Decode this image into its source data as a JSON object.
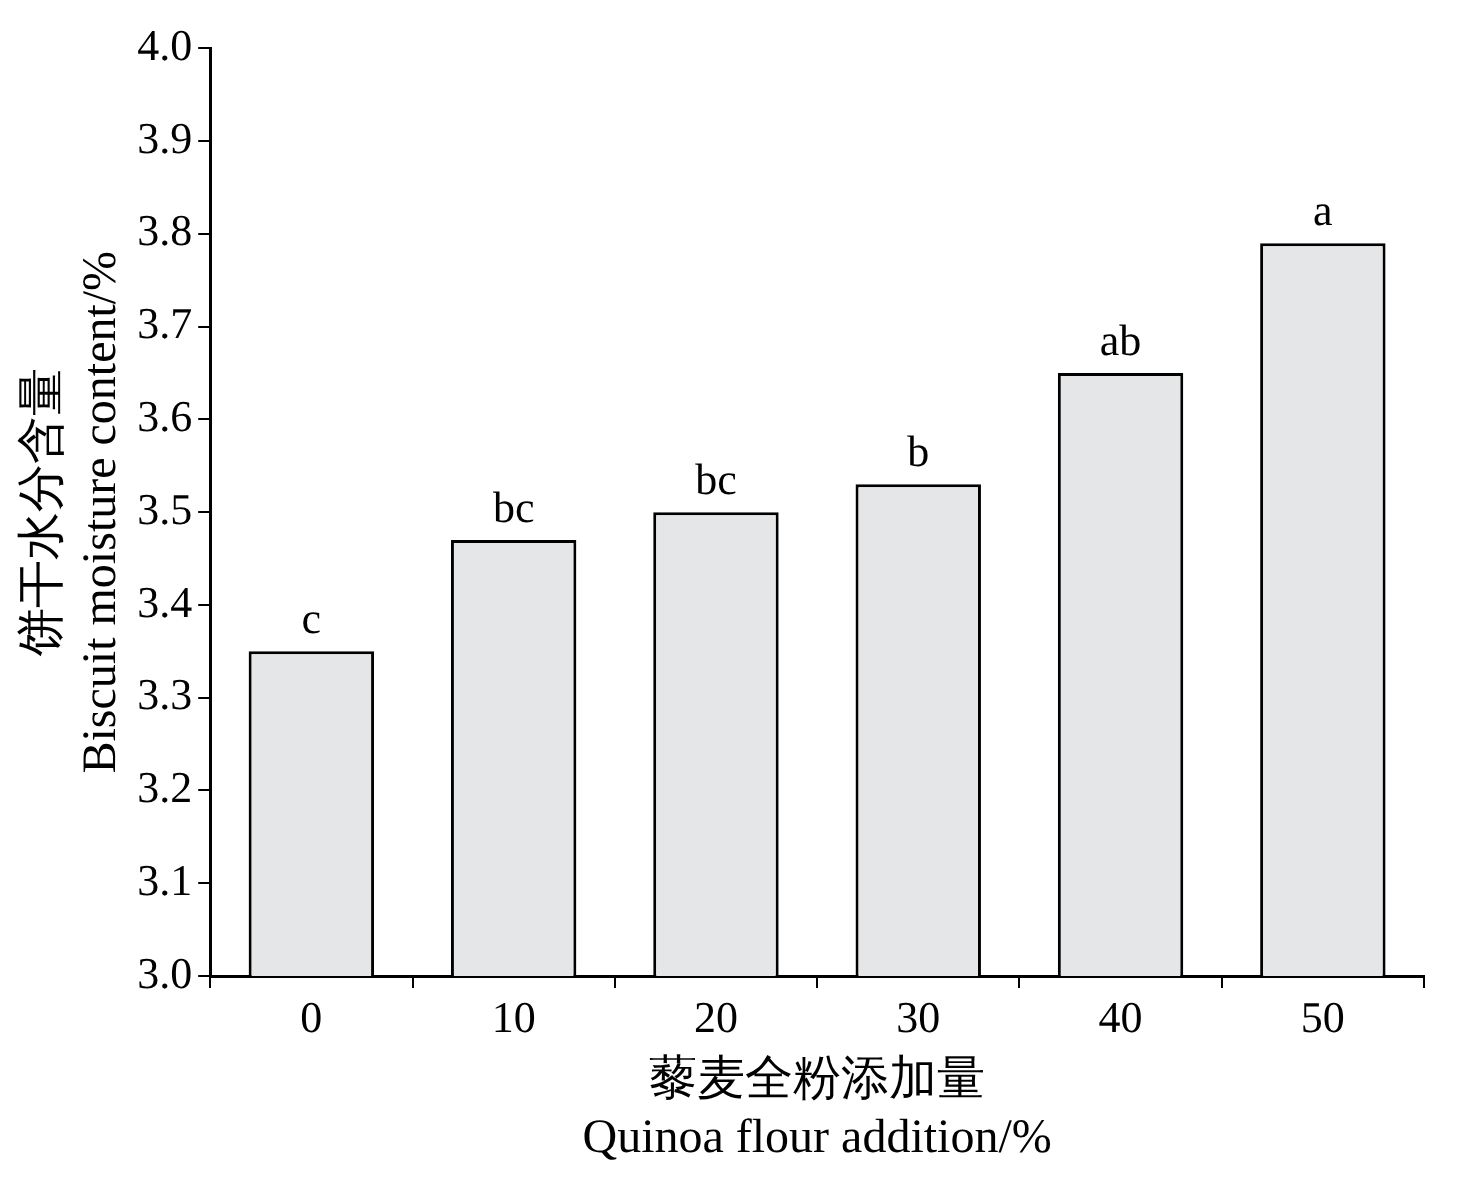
{
  "chart_data": {
    "type": "bar",
    "xlabel": "藜麦全粉添加量\nQuinoa flour addition/%",
    "ylabel": "饼干水分含量\nBiscuit moisture content/%",
    "categories": [
      "0",
      "10",
      "20",
      "30",
      "40",
      "50"
    ],
    "values": [
      3.35,
      3.47,
      3.5,
      3.53,
      3.65,
      3.79
    ],
    "color": "#e5e6e8",
    "ylim": [
      3.0,
      4.0
    ],
    "yticks": [
      {
        "value": 3.0,
        "label": "3.0"
      },
      {
        "value": 3.1,
        "label": "3.1"
      },
      {
        "value": 3.2,
        "label": "3.2"
      },
      {
        "value": 3.3,
        "label": "3.3"
      },
      {
        "value": 3.4,
        "label": "3.4"
      },
      {
        "value": 3.5,
        "label": "3.5"
      },
      {
        "value": 3.6,
        "label": "3.6"
      },
      {
        "value": 3.7,
        "label": "3.7"
      },
      {
        "value": 3.8,
        "label": "3.8"
      },
      {
        "value": 3.9,
        "label": "3.9"
      },
      {
        "value": 4.0,
        "label": "4.0"
      }
    ],
    "annotations": [
      {
        "text": "c",
        "x": "0",
        "y": 3.35
      },
      {
        "text": "bc",
        "x": "10",
        "y": 3.47
      },
      {
        "text": "bc",
        "x": "20",
        "y": 3.5
      },
      {
        "text": "b",
        "x": "30",
        "y": 3.53
      },
      {
        "text": "ab",
        "x": "40",
        "y": 3.65
      },
      {
        "text": "a",
        "x": "50",
        "y": 3.79
      }
    ]
  }
}
